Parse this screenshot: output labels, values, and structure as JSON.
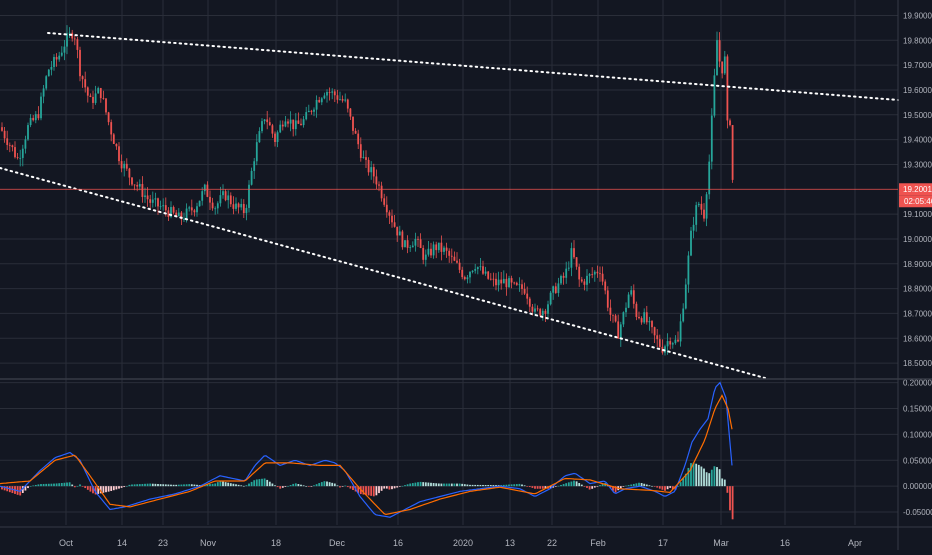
{
  "colors": {
    "background": "#131722",
    "grid": "#2a2e39",
    "axis_text": "#b2b5be",
    "up": "#26a69a",
    "down": "#ef5350",
    "macd_line": "#2962ff",
    "signal_line": "#ff6d00",
    "trendline": "#ffffff"
  },
  "chart_data": [
    {
      "type": "candlestick",
      "title": "",
      "y_axis_side": "right",
      "ylim": [
        18.44,
        19.93
      ],
      "grid": true,
      "yticks": [
        "19.90000",
        "19.80000",
        "19.70000",
        "19.60000",
        "19.50000",
        "19.40000",
        "19.30000",
        "19.10000",
        "19.00000",
        "18.90000",
        "18.80000",
        "18.70000",
        "18.60000",
        "18.50000"
      ],
      "xticks": [
        "Oct",
        "14",
        "23",
        "Nov",
        "18",
        "Dec",
        "16",
        "2020",
        "13",
        "22",
        "Feb",
        "17",
        "Mar",
        "16",
        "Apr"
      ],
      "price_control_points": [
        [
          0,
          19.45
        ],
        [
          10,
          19.38
        ],
        [
          18,
          19.32
        ],
        [
          28,
          19.45
        ],
        [
          38,
          19.5
        ],
        [
          48,
          19.68
        ],
        [
          58,
          19.73
        ],
        [
          66,
          19.8
        ],
        [
          74,
          19.84
        ],
        [
          80,
          19.68
        ],
        [
          90,
          19.55
        ],
        [
          100,
          19.6
        ],
        [
          110,
          19.45
        ],
        [
          120,
          19.32
        ],
        [
          130,
          19.25
        ],
        [
          140,
          19.2
        ],
        [
          150,
          19.15
        ],
        [
          165,
          19.12
        ],
        [
          180,
          19.08
        ],
        [
          195,
          19.13
        ],
        [
          205,
          19.2
        ],
        [
          215,
          19.13
        ],
        [
          225,
          19.18
        ],
        [
          235,
          19.13
        ],
        [
          245,
          19.11
        ],
        [
          255,
          19.35
        ],
        [
          265,
          19.5
        ],
        [
          275,
          19.4
        ],
        [
          285,
          19.5
        ],
        [
          295,
          19.45
        ],
        [
          305,
          19.48
        ],
        [
          315,
          19.55
        ],
        [
          325,
          19.6
        ],
        [
          335,
          19.58
        ],
        [
          345,
          19.55
        ],
        [
          355,
          19.42
        ],
        [
          365,
          19.3
        ],
        [
          375,
          19.25
        ],
        [
          385,
          19.15
        ],
        [
          395,
          19.05
        ],
        [
          405,
          18.97
        ],
        [
          415,
          19.0
        ],
        [
          425,
          18.92
        ],
        [
          435,
          18.97
        ],
        [
          445,
          18.95
        ],
        [
          455,
          18.9
        ],
        [
          465,
          18.85
        ],
        [
          475,
          18.9
        ],
        [
          485,
          18.85
        ],
        [
          495,
          18.82
        ],
        [
          505,
          18.83
        ],
        [
          515,
          18.8
        ],
        [
          525,
          18.8
        ],
        [
          535,
          18.7
        ],
        [
          545,
          18.72
        ],
        [
          555,
          18.8
        ],
        [
          565,
          18.85
        ],
        [
          572,
          18.95
        ],
        [
          580,
          18.82
        ],
        [
          590,
          18.85
        ],
        [
          600,
          18.88
        ],
        [
          610,
          18.7
        ],
        [
          618,
          18.62
        ],
        [
          624,
          18.7
        ],
        [
          630,
          18.8
        ],
        [
          636,
          18.7
        ],
        [
          645,
          18.68
        ],
        [
          655,
          18.6
        ],
        [
          662,
          18.56
        ],
        [
          670,
          18.6
        ],
        [
          678,
          18.58
        ],
        [
          685,
          18.8
        ],
        [
          692,
          19.05
        ],
        [
          698,
          19.15
        ],
        [
          704,
          19.1
        ],
        [
          709,
          19.3
        ],
        [
          713,
          19.55
        ],
        [
          716,
          19.75
        ],
        [
          718,
          19.85
        ],
        [
          721,
          19.6
        ],
        [
          724,
          19.82
        ],
        [
          727,
          19.45
        ],
        [
          730,
          19.48
        ],
        [
          733,
          19.2
        ]
      ],
      "last_price_label": "19.20011",
      "countdown_label": "02:05:46",
      "last_price_color": "#ef5350"
    },
    {
      "type": "macd",
      "title": "",
      "y_axis_side": "right",
      "ylim": [
        -0.075,
        0.205
      ],
      "grid": true,
      "yticks": [
        "0.20000",
        "0.15000",
        "0.10000",
        "0.05000",
        "0.00000",
        "-0.05000"
      ],
      "macd_control_points": [
        [
          0,
          0.0
        ],
        [
          20,
          -0.01
        ],
        [
          40,
          0.03
        ],
        [
          55,
          0.055
        ],
        [
          70,
          0.065
        ],
        [
          80,
          0.05
        ],
        [
          95,
          -0.01
        ],
        [
          110,
          -0.045
        ],
        [
          125,
          -0.04
        ],
        [
          150,
          -0.025
        ],
        [
          175,
          -0.015
        ],
        [
          200,
          0.0
        ],
        [
          220,
          0.02
        ],
        [
          245,
          0.01
        ],
        [
          255,
          0.04
        ],
        [
          265,
          0.06
        ],
        [
          280,
          0.04
        ],
        [
          295,
          0.05
        ],
        [
          310,
          0.04
        ],
        [
          325,
          0.05
        ],
        [
          335,
          0.045
        ],
        [
          345,
          0.03
        ],
        [
          360,
          -0.02
        ],
        [
          375,
          -0.055
        ],
        [
          390,
          -0.06
        ],
        [
          405,
          -0.045
        ],
        [
          420,
          -0.03
        ],
        [
          440,
          -0.02
        ],
        [
          460,
          -0.01
        ],
        [
          480,
          -0.005
        ],
        [
          500,
          0.0
        ],
        [
          520,
          -0.005
        ],
        [
          535,
          -0.02
        ],
        [
          550,
          -0.005
        ],
        [
          565,
          0.02
        ],
        [
          575,
          0.025
        ],
        [
          590,
          0.005
        ],
        [
          605,
          0.01
        ],
        [
          615,
          -0.015
        ],
        [
          625,
          -0.005
        ],
        [
          640,
          0.0
        ],
        [
          655,
          -0.01
        ],
        [
          665,
          -0.02
        ],
        [
          675,
          -0.01
        ],
        [
          685,
          0.04
        ],
        [
          692,
          0.085
        ],
        [
          700,
          0.11
        ],
        [
          708,
          0.13
        ],
        [
          715,
          0.19
        ],
        [
          720,
          0.2
        ],
        [
          726,
          0.17
        ],
        [
          732,
          0.04
        ]
      ],
      "signal_control_points": [
        [
          0,
          0.005
        ],
        [
          30,
          0.01
        ],
        [
          55,
          0.05
        ],
        [
          75,
          0.06
        ],
        [
          90,
          0.02
        ],
        [
          110,
          -0.035
        ],
        [
          130,
          -0.04
        ],
        [
          160,
          -0.025
        ],
        [
          190,
          -0.01
        ],
        [
          215,
          0.01
        ],
        [
          245,
          0.01
        ],
        [
          265,
          0.045
        ],
        [
          290,
          0.045
        ],
        [
          320,
          0.04
        ],
        [
          340,
          0.04
        ],
        [
          360,
          -0.005
        ],
        [
          385,
          -0.055
        ],
        [
          410,
          -0.045
        ],
        [
          440,
          -0.025
        ],
        [
          470,
          -0.01
        ],
        [
          500,
          -0.002
        ],
        [
          535,
          -0.015
        ],
        [
          565,
          0.015
        ],
        [
          590,
          0.012
        ],
        [
          620,
          -0.005
        ],
        [
          650,
          -0.008
        ],
        [
          670,
          -0.012
        ],
        [
          690,
          0.03
        ],
        [
          705,
          0.09
        ],
        [
          715,
          0.15
        ],
        [
          722,
          0.175
        ],
        [
          728,
          0.15
        ],
        [
          733,
          0.1
        ]
      ]
    }
  ]
}
